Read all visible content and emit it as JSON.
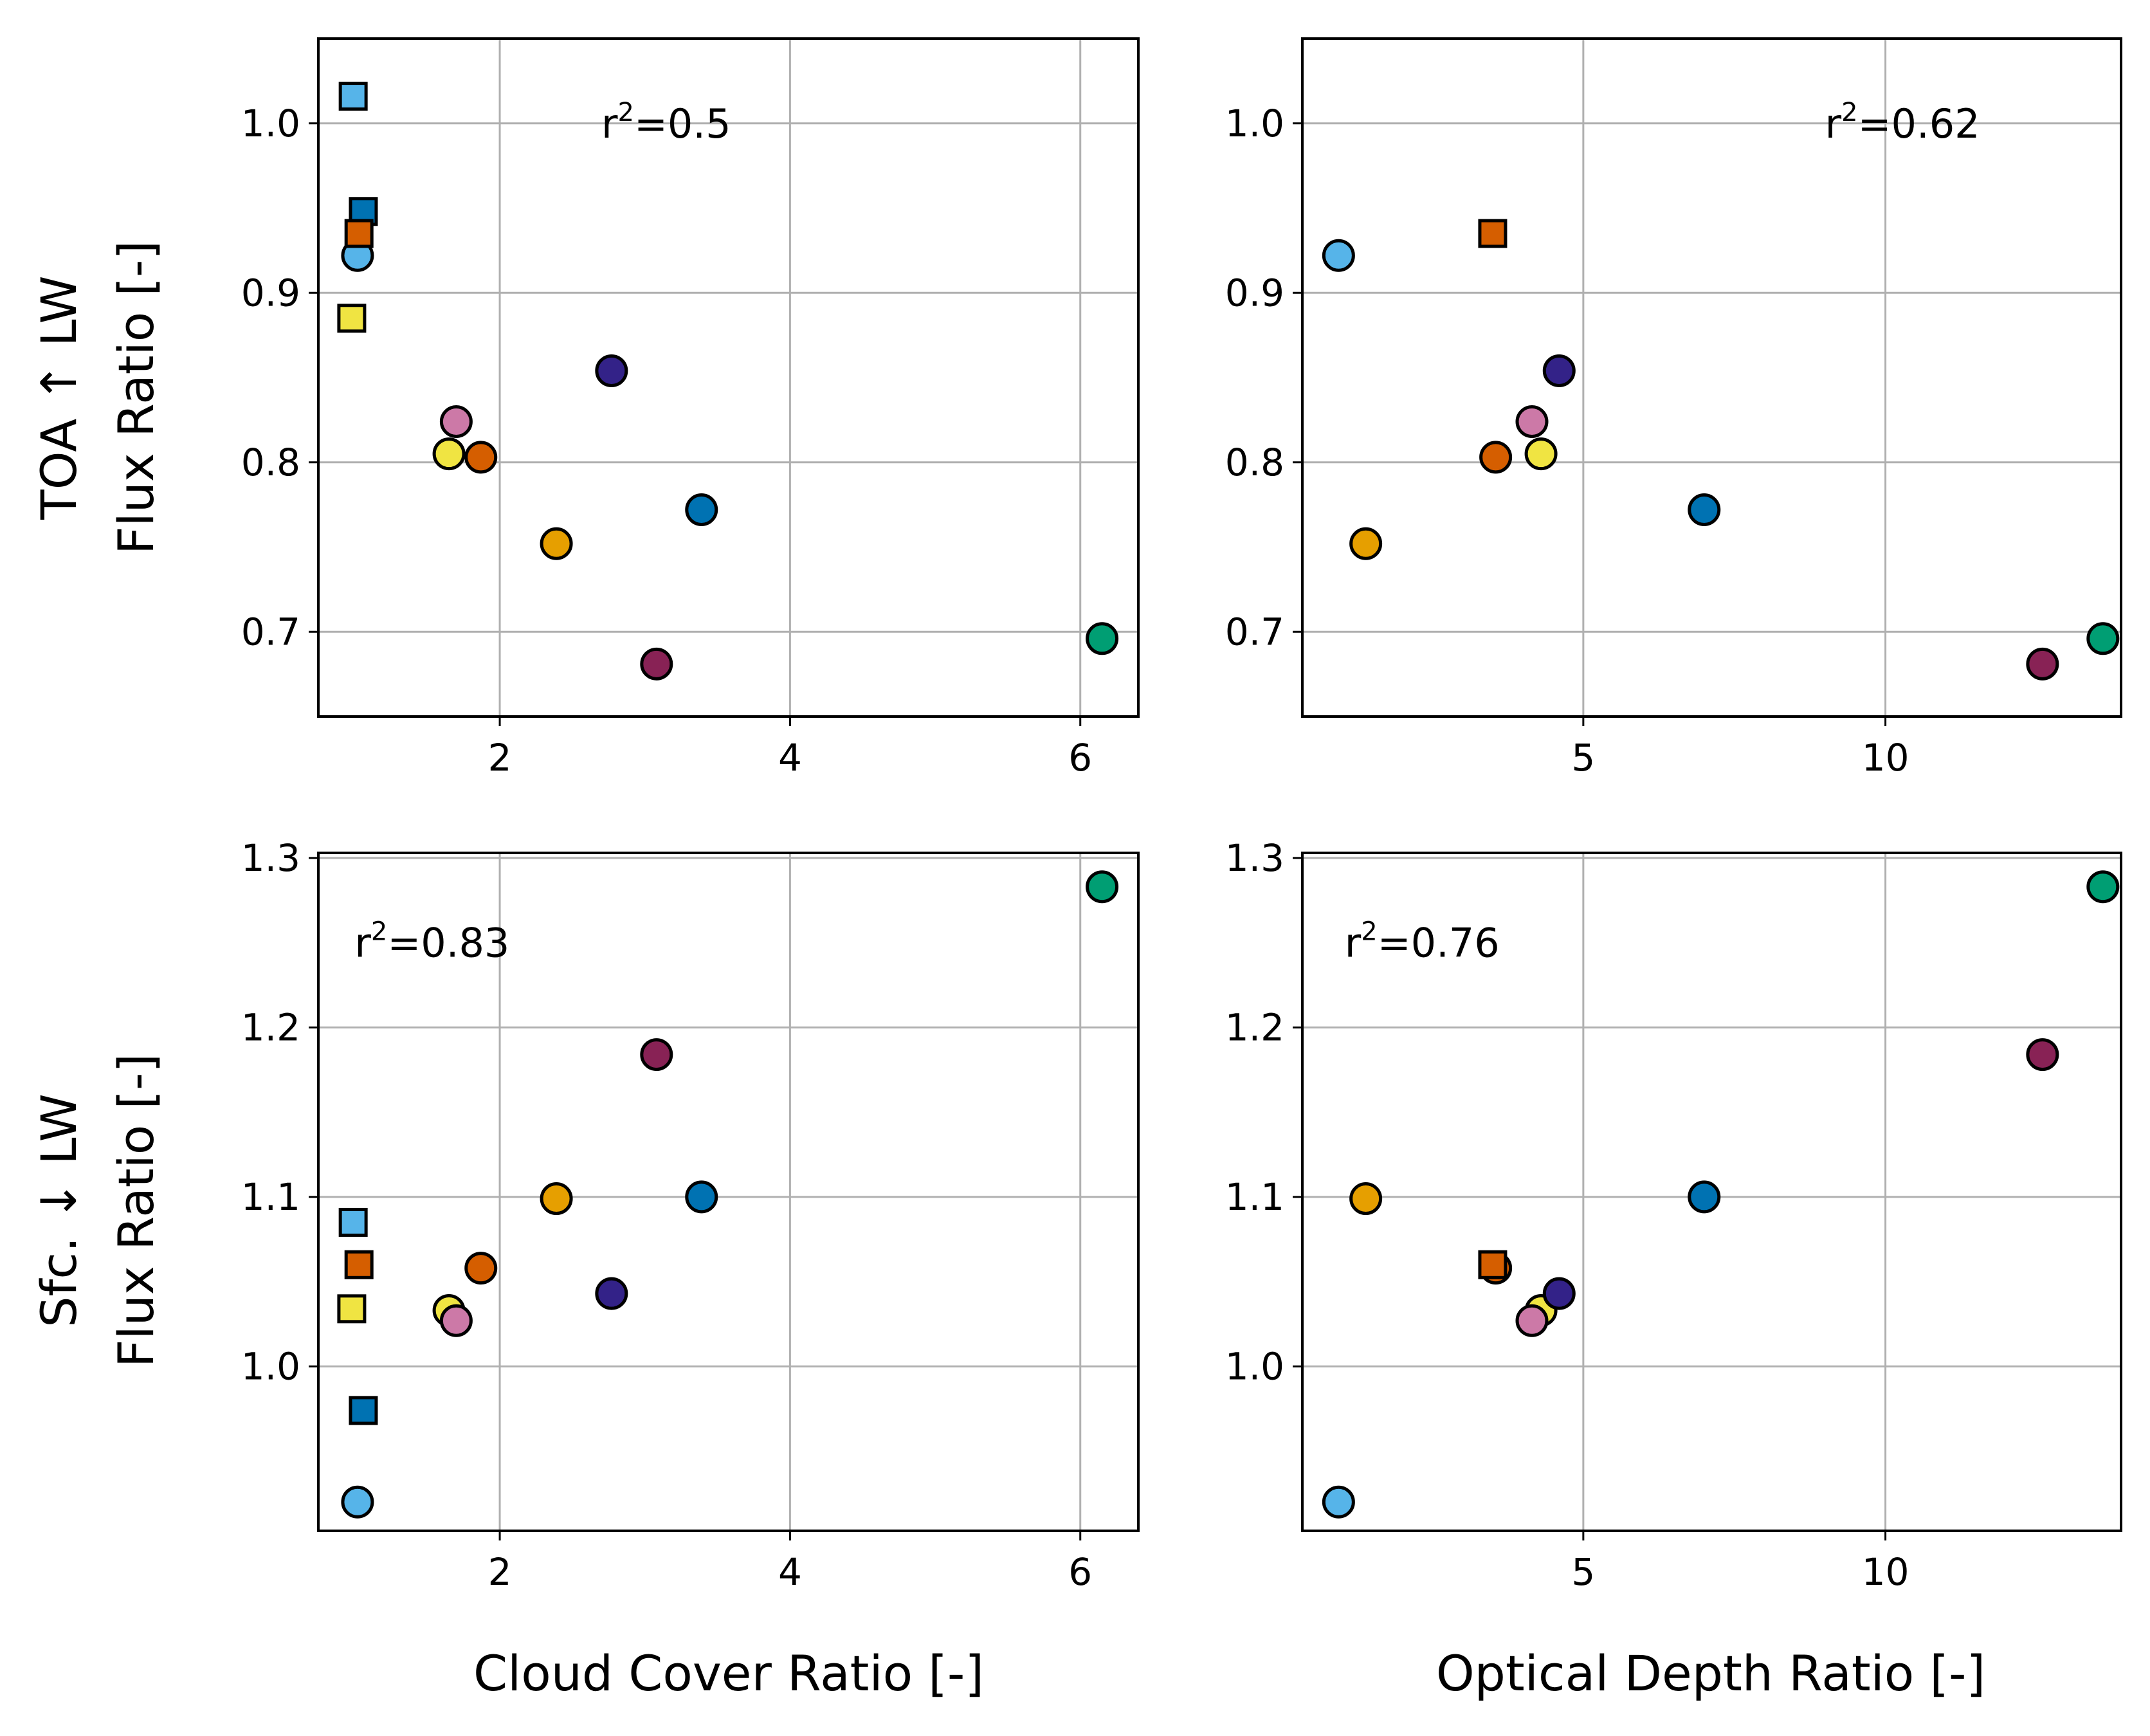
{
  "colors": {
    "sky_blue": "#56B4E9",
    "blue": "#0072B2",
    "vermillion": "#D55E00",
    "yellow": "#F0E442",
    "orange": "#E69F00",
    "reddish_purple": "#CC79A7",
    "indigo": "#332288",
    "wine": "#882255",
    "green": "#009E73",
    "grid": "#b0b0b0"
  },
  "rows": [
    {
      "ylabel_line1": "TOA  ↑ LW",
      "ylabel_line2": "Flux Ratio [-]"
    },
    {
      "ylabel_line1": "Sfc.  ↓ LW",
      "ylabel_line2": "Flux Ratio [-]"
    }
  ],
  "columns": [
    {
      "xlabel": "Cloud Cover Ratio [-]"
    },
    {
      "xlabel": "Optical Depth Ratio [-]"
    }
  ],
  "chart_data": [
    {
      "type": "scatter",
      "id": "toa-cloud-cover",
      "xlim": [
        0.75,
        6.4
      ],
      "ylim": [
        0.65,
        1.05
      ],
      "xticks": [
        2,
        4,
        6
      ],
      "yticks": [
        0.7,
        0.8,
        0.9,
        1.0
      ],
      "xtick_labels": [
        "2",
        "4",
        "6"
      ],
      "ytick_labels": [
        "0.7",
        "0.8",
        "0.9",
        "1.0"
      ],
      "grid": true,
      "annotation": {
        "r_label": "r",
        "sup": "2",
        "value": "=0.5",
        "ax": 2.7,
        "ay": 1.0
      },
      "points": [
        {
          "x": 0.99,
          "y": 1.016,
          "marker": "square",
          "color": "#56B4E9"
        },
        {
          "x": 1.06,
          "y": 0.948,
          "marker": "square",
          "color": "#0072B2"
        },
        {
          "x": 1.02,
          "y": 0.922,
          "marker": "circle",
          "color": "#56B4E9"
        },
        {
          "x": 1.03,
          "y": 0.935,
          "marker": "square",
          "color": "#D55E00"
        },
        {
          "x": 0.98,
          "y": 0.885,
          "marker": "square",
          "color": "#F0E442"
        },
        {
          "x": 2.77,
          "y": 0.854,
          "marker": "circle",
          "color": "#332288"
        },
        {
          "x": 1.7,
          "y": 0.824,
          "marker": "circle",
          "color": "#CC79A7"
        },
        {
          "x": 1.65,
          "y": 0.805,
          "marker": "circle",
          "color": "#F0E442"
        },
        {
          "x": 1.87,
          "y": 0.803,
          "marker": "circle",
          "color": "#D55E00"
        },
        {
          "x": 3.39,
          "y": 0.772,
          "marker": "circle",
          "color": "#0072B2"
        },
        {
          "x": 2.39,
          "y": 0.752,
          "marker": "circle",
          "color": "#E69F00"
        },
        {
          "x": 3.08,
          "y": 0.681,
          "marker": "circle",
          "color": "#882255"
        },
        {
          "x": 6.15,
          "y": 0.696,
          "marker": "circle",
          "color": "#009E73"
        }
      ]
    },
    {
      "type": "scatter",
      "id": "toa-optical-depth",
      "xlim": [
        0.35,
        13.9
      ],
      "ylim": [
        0.65,
        1.05
      ],
      "xticks": [
        5,
        10
      ],
      "yticks": [
        0.7,
        0.8,
        0.9,
        1.0
      ],
      "xtick_labels": [
        "5",
        "10"
      ],
      "ytick_labels": [
        "0.7",
        "0.8",
        "0.9",
        "1.0"
      ],
      "grid": true,
      "annotation": {
        "r_label": "r",
        "sup": "2",
        "value": "=0.62",
        "ax": 9.0,
        "ay": 1.0
      },
      "points": [
        {
          "x": 0.95,
          "y": 0.922,
          "marker": "circle",
          "color": "#56B4E9"
        },
        {
          "x": 3.5,
          "y": 0.935,
          "marker": "square",
          "color": "#D55E00"
        },
        {
          "x": 4.6,
          "y": 0.854,
          "marker": "circle",
          "color": "#332288"
        },
        {
          "x": 4.15,
          "y": 0.824,
          "marker": "circle",
          "color": "#CC79A7"
        },
        {
          "x": 3.55,
          "y": 0.803,
          "marker": "circle",
          "color": "#D55E00"
        },
        {
          "x": 4.3,
          "y": 0.805,
          "marker": "circle",
          "color": "#F0E442"
        },
        {
          "x": 7.0,
          "y": 0.772,
          "marker": "circle",
          "color": "#0072B2"
        },
        {
          "x": 1.4,
          "y": 0.752,
          "marker": "circle",
          "color": "#E69F00"
        },
        {
          "x": 12.6,
          "y": 0.681,
          "marker": "circle",
          "color": "#882255"
        },
        {
          "x": 13.6,
          "y": 0.696,
          "marker": "circle",
          "color": "#009E73"
        }
      ]
    },
    {
      "type": "scatter",
      "id": "sfc-cloud-cover",
      "xlim": [
        0.75,
        6.4
      ],
      "ylim": [
        0.903,
        1.303
      ],
      "xticks": [
        2,
        4,
        6
      ],
      "yticks": [
        1.0,
        1.1,
        1.2,
        1.3
      ],
      "xtick_labels": [
        "2",
        "4",
        "6"
      ],
      "ytick_labels": [
        "1.0",
        "1.1",
        "1.2",
        "1.3"
      ],
      "grid": true,
      "annotation": {
        "r_label": "r",
        "sup": "2",
        "value": "=0.83",
        "ax": 1.0,
        "ay": 1.25
      },
      "points": [
        {
          "x": 6.15,
          "y": 1.283,
          "marker": "circle",
          "color": "#009E73"
        },
        {
          "x": 3.08,
          "y": 1.184,
          "marker": "circle",
          "color": "#882255"
        },
        {
          "x": 2.39,
          "y": 1.099,
          "marker": "circle",
          "color": "#E69F00"
        },
        {
          "x": 3.39,
          "y": 1.1,
          "marker": "circle",
          "color": "#0072B2"
        },
        {
          "x": 0.99,
          "y": 1.085,
          "marker": "square",
          "color": "#56B4E9"
        },
        {
          "x": 1.03,
          "y": 1.06,
          "marker": "square",
          "color": "#D55E00"
        },
        {
          "x": 1.87,
          "y": 1.058,
          "marker": "circle",
          "color": "#D55E00"
        },
        {
          "x": 2.77,
          "y": 1.043,
          "marker": "circle",
          "color": "#332288"
        },
        {
          "x": 1.65,
          "y": 1.033,
          "marker": "circle",
          "color": "#F0E442"
        },
        {
          "x": 0.98,
          "y": 1.034,
          "marker": "square",
          "color": "#F0E442"
        },
        {
          "x": 1.7,
          "y": 1.027,
          "marker": "circle",
          "color": "#CC79A7"
        },
        {
          "x": 1.06,
          "y": 0.974,
          "marker": "square",
          "color": "#0072B2"
        },
        {
          "x": 1.02,
          "y": 0.92,
          "marker": "circle",
          "color": "#56B4E9"
        }
      ]
    },
    {
      "type": "scatter",
      "id": "sfc-optical-depth",
      "xlim": [
        0.35,
        13.9
      ],
      "ylim": [
        0.903,
        1.303
      ],
      "xticks": [
        5,
        10
      ],
      "yticks": [
        1.0,
        1.1,
        1.2,
        1.3
      ],
      "xtick_labels": [
        "5",
        "10"
      ],
      "ytick_labels": [
        "1.0",
        "1.1",
        "1.2",
        "1.3"
      ],
      "grid": true,
      "annotation": {
        "r_label": "r",
        "sup": "2",
        "value": "=0.76",
        "ax": 1.05,
        "ay": 1.25
      },
      "points": [
        {
          "x": 13.6,
          "y": 1.283,
          "marker": "circle",
          "color": "#009E73"
        },
        {
          "x": 12.6,
          "y": 1.184,
          "marker": "circle",
          "color": "#882255"
        },
        {
          "x": 1.4,
          "y": 1.099,
          "marker": "circle",
          "color": "#E69F00"
        },
        {
          "x": 7.0,
          "y": 1.1,
          "marker": "circle",
          "color": "#0072B2"
        },
        {
          "x": 3.55,
          "y": 1.058,
          "marker": "circle",
          "color": "#D55E00"
        },
        {
          "x": 3.5,
          "y": 1.06,
          "marker": "square",
          "color": "#D55E00"
        },
        {
          "x": 4.3,
          "y": 1.033,
          "marker": "circle",
          "color": "#F0E442"
        },
        {
          "x": 4.6,
          "y": 1.043,
          "marker": "circle",
          "color": "#332288"
        },
        {
          "x": 4.15,
          "y": 1.027,
          "marker": "circle",
          "color": "#CC79A7"
        },
        {
          "x": 0.95,
          "y": 0.92,
          "marker": "circle",
          "color": "#56B4E9"
        }
      ]
    }
  ]
}
